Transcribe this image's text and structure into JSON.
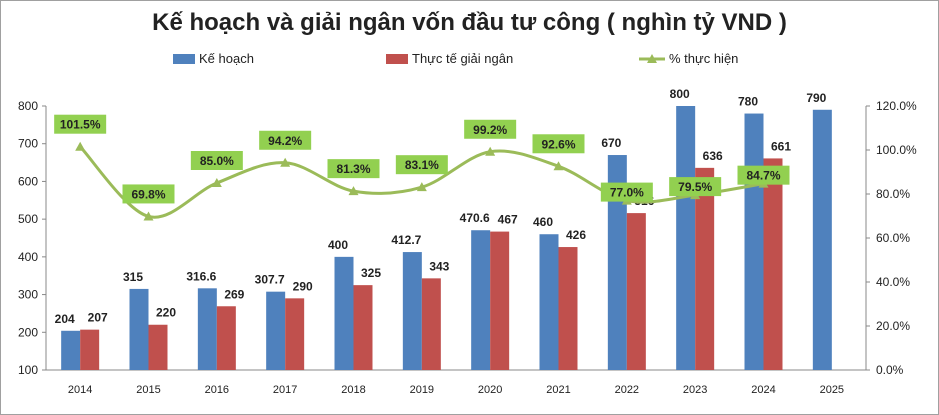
{
  "chart_data": {
    "type": "bar",
    "title": "Kế hoạch và giải ngân vốn đầu tư công ( nghìn tỷ VND )",
    "categories": [
      "2014",
      "2015",
      "2016",
      "2017",
      "2018",
      "2019",
      "2020",
      "2021",
      "2022",
      "2023",
      "2024",
      "2025"
    ],
    "series": [
      {
        "name": "Kế hoạch",
        "type": "bar",
        "axis": "left",
        "color": "#4F81BD",
        "values": [
          204,
          315,
          316.6,
          307.7,
          400,
          412.7,
          470.6,
          460,
          670,
          800,
          780,
          790
        ],
        "labels": [
          "204",
          "315",
          "316.6",
          "307.7",
          "400",
          "412.7",
          "470.6",
          "460",
          "670",
          "800",
          "780",
          "790"
        ]
      },
      {
        "name": "Thực tế giải ngân",
        "type": "bar",
        "axis": "left",
        "color": "#C0504D",
        "values": [
          207,
          220,
          269,
          290,
          325,
          343,
          467,
          426,
          516,
          636,
          661,
          null
        ],
        "labels": [
          "207",
          "220",
          "269",
          "290",
          "325",
          "343",
          "467",
          "426",
          "516",
          "636",
          "661",
          ""
        ]
      },
      {
        "name": "% thực hiện",
        "type": "line",
        "axis": "right",
        "color": "#9BBB59",
        "values": [
          101.5,
          69.8,
          85.0,
          94.2,
          81.3,
          83.1,
          99.2,
          92.6,
          77.0,
          79.5,
          84.7,
          null
        ],
        "labels": [
          "101.5%",
          "69.8%",
          "85.0%",
          "94.2%",
          "81.3%",
          "83.1%",
          "99.2%",
          "92.6%",
          "77.0%",
          "79.5%",
          "84.7%",
          ""
        ]
      }
    ],
    "y_left": {
      "range": [
        100,
        800
      ],
      "ticks": [
        "100",
        "200",
        "300",
        "400",
        "500",
        "600",
        "700",
        "800"
      ]
    },
    "y_right": {
      "range": [
        0,
        120
      ],
      "ticks": [
        "0.0%",
        "20.0%",
        "40.0%",
        "60.0%",
        "80.0%",
        "100.0%",
        "120.0%"
      ]
    },
    "legend": "top",
    "grid": false,
    "label_box_color": "#92D050"
  }
}
